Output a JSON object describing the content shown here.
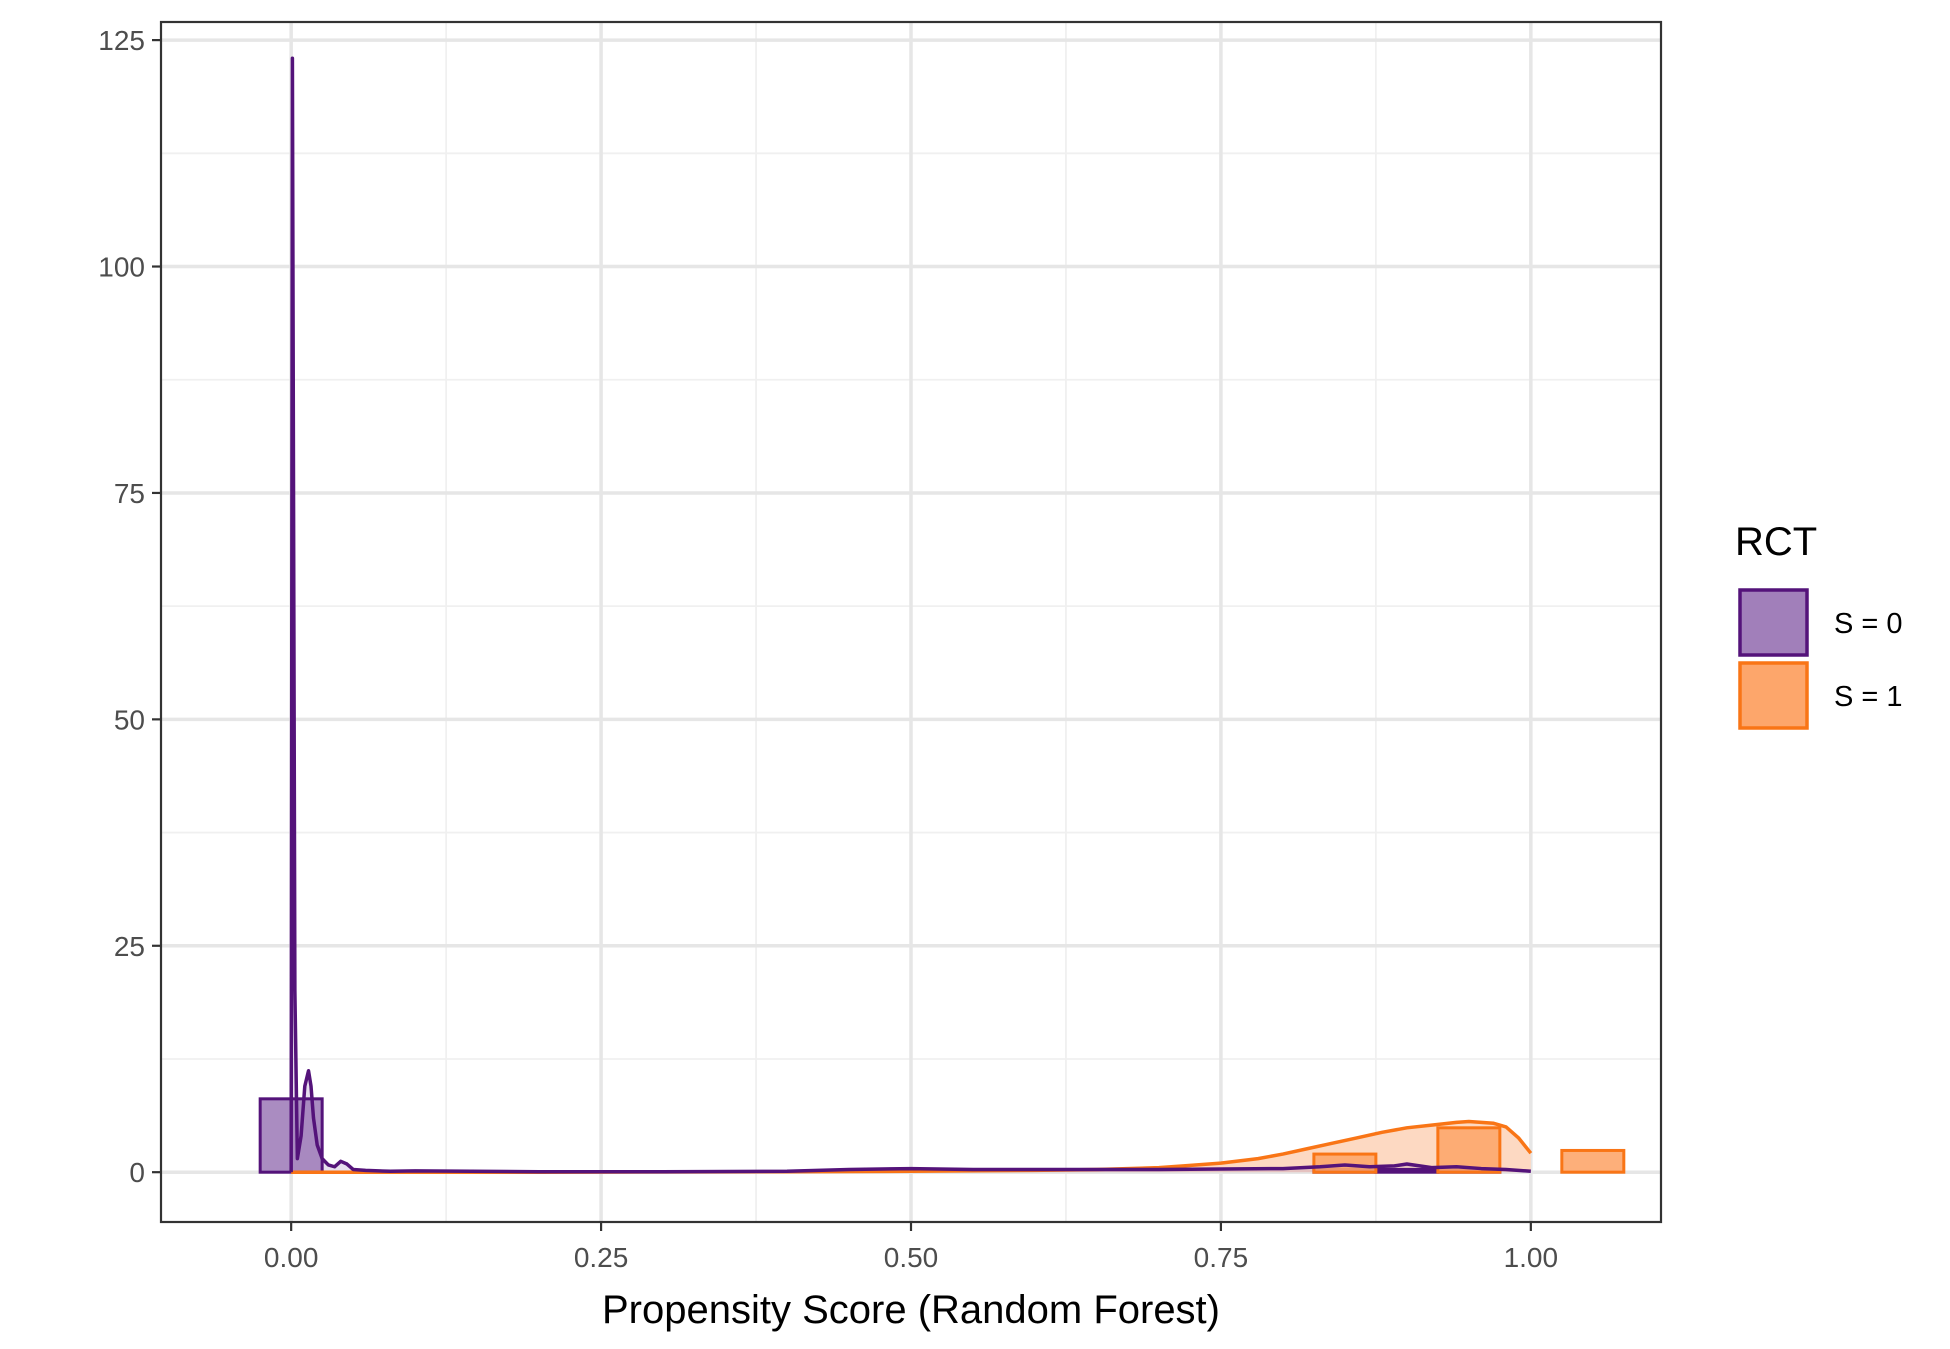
{
  "chart_data": {
    "type": "area",
    "title": "",
    "xlabel": "Propensity Score (Random Forest)",
    "ylabel": "",
    "xlim": [
      -0.105,
      1.105
    ],
    "ylim": [
      -5.5,
      127
    ],
    "x_ticks": [
      0.0,
      0.25,
      0.5,
      0.75,
      1.0
    ],
    "x_tick_labels": [
      "0.00",
      "0.25",
      "0.50",
      "0.75",
      "1.00"
    ],
    "y_ticks": [
      0,
      25,
      50,
      75,
      100,
      125
    ],
    "y_tick_labels": [
      "0",
      "25",
      "50",
      "75",
      "100",
      "125"
    ],
    "grid": true,
    "legend": {
      "title": "RCT",
      "position": "right",
      "entries": [
        "S = 0",
        "S = 1"
      ]
    },
    "colors": {
      "s0_line": "#54137a",
      "s0_fill": "#a17fba",
      "s1_line": "#f97516",
      "s1_fill": "#fda66b",
      "s1_density_fill": "#fdd9c2"
    },
    "histogram": {
      "binwidth": 0.05,
      "series": [
        {
          "name": "S = 0",
          "bins": [
            {
              "x": 0.0,
              "value": 8.1
            },
            {
              "x": 0.85,
              "value": 0.3
            },
            {
              "x": 0.9,
              "value": 0.3
            },
            {
              "x": 0.95,
              "value": 0.2
            }
          ]
        },
        {
          "name": "S = 1",
          "bins": [
            {
              "x": 0.85,
              "value": 2.0
            },
            {
              "x": 0.95,
              "value": 4.9
            },
            {
              "x": 1.05,
              "value": 2.4
            }
          ]
        }
      ]
    },
    "density": [
      {
        "name": "S = 0",
        "x": [
          0.0,
          0.001,
          0.002,
          0.003,
          0.005,
          0.008,
          0.011,
          0.014,
          0.016,
          0.018,
          0.021,
          0.025,
          0.03,
          0.035,
          0.04,
          0.045,
          0.05,
          0.06,
          0.08,
          0.1,
          0.2,
          0.3,
          0.4,
          0.45,
          0.5,
          0.55,
          0.6,
          0.7,
          0.8,
          0.83,
          0.85,
          0.87,
          0.89,
          0.9,
          0.92,
          0.94,
          0.96,
          0.98,
          1.0
        ],
        "y": [
          0.0,
          123.0,
          70.0,
          20.0,
          1.5,
          4.0,
          9.5,
          11.2,
          9.5,
          6.0,
          3.0,
          1.5,
          0.8,
          0.6,
          1.2,
          0.9,
          0.3,
          0.2,
          0.1,
          0.15,
          0.05,
          0.05,
          0.1,
          0.3,
          0.4,
          0.3,
          0.3,
          0.3,
          0.4,
          0.6,
          0.8,
          0.6,
          0.7,
          0.9,
          0.5,
          0.6,
          0.4,
          0.3,
          0.1
        ]
      },
      {
        "name": "S = 1",
        "x": [
          0.0,
          0.2,
          0.4,
          0.5,
          0.6,
          0.65,
          0.7,
          0.72,
          0.75,
          0.78,
          0.8,
          0.82,
          0.84,
          0.86,
          0.88,
          0.9,
          0.92,
          0.94,
          0.95,
          0.96,
          0.97,
          0.98,
          0.99,
          1.0
        ],
        "y": [
          0.0,
          0.0,
          0.05,
          0.1,
          0.2,
          0.3,
          0.5,
          0.7,
          1.0,
          1.5,
          2.0,
          2.6,
          3.2,
          3.8,
          4.4,
          4.9,
          5.2,
          5.5,
          5.6,
          5.5,
          5.4,
          5.0,
          3.8,
          2.1
        ]
      }
    ]
  }
}
